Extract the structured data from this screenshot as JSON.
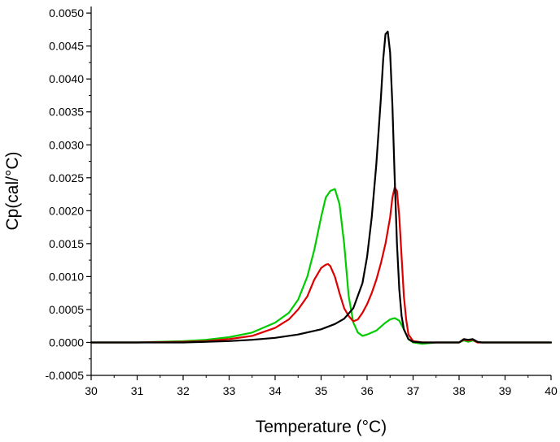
{
  "chart_data": {
    "type": "line",
    "title": "",
    "xlabel": "Temperature (°C)",
    "ylabel": "Cp(cal/°C)",
    "xlim": [
      30,
      40
    ],
    "ylim": [
      -0.0005,
      0.0051
    ],
    "x_ticks": [
      "30",
      "31",
      "32",
      "33",
      "34",
      "35",
      "36",
      "37",
      "38",
      "39",
      "40"
    ],
    "y_ticks": [
      "-0.0005",
      "0.0000",
      "0.0005",
      "0.0010",
      "0.0015",
      "0.0020",
      "0.0025",
      "0.0030",
      "0.0035",
      "0.0040",
      "0.0045",
      "0.0050"
    ],
    "grid": false,
    "legend": "none",
    "series": [
      {
        "color": "#00cc00",
        "x": [
          30.0,
          31.0,
          32.0,
          32.5,
          33.0,
          33.5,
          34.0,
          34.3,
          34.5,
          34.7,
          34.85,
          35.0,
          35.1,
          35.2,
          35.3,
          35.4,
          35.5,
          35.6,
          35.7,
          35.8,
          35.9,
          36.0,
          36.2,
          36.4,
          36.5,
          36.6,
          36.7,
          36.8,
          36.9,
          37.0,
          37.2,
          37.5,
          38.0,
          38.1,
          38.2,
          38.3,
          38.4,
          38.5,
          39.0,
          40.0
        ],
        "y": [
          0.0,
          0.0,
          2e-05,
          4e-05,
          8e-05,
          0.00015,
          0.0003,
          0.00045,
          0.00065,
          0.001,
          0.0014,
          0.0019,
          0.0022,
          0.0023,
          0.00233,
          0.0021,
          0.0015,
          0.0007,
          0.0003,
          0.00015,
          0.0001,
          0.00012,
          0.00018,
          0.0003,
          0.00035,
          0.00037,
          0.00033,
          0.0002,
          5e-05,
          0.0,
          -2e-05,
          0.0,
          0.0,
          3e-05,
          1e-05,
          3e-05,
          0.0,
          0.0,
          0.0,
          0.0
        ]
      },
      {
        "color": "#dd0000",
        "x": [
          30.0,
          31.0,
          32.0,
          32.5,
          33.0,
          33.5,
          34.0,
          34.3,
          34.5,
          34.7,
          34.85,
          35.0,
          35.1,
          35.15,
          35.2,
          35.3,
          35.4,
          35.5,
          35.6,
          35.7,
          35.8,
          35.9,
          36.0,
          36.1,
          36.2,
          36.3,
          36.4,
          36.5,
          36.55,
          36.6,
          36.65,
          36.7,
          36.75,
          36.8,
          36.85,
          36.9,
          37.0,
          37.2,
          37.5,
          38.0,
          38.1,
          38.2,
          38.3,
          38.4,
          38.5,
          39.0,
          40.0
        ],
        "y": [
          0.0,
          0.0,
          1e-05,
          2e-05,
          5e-05,
          0.0001,
          0.00022,
          0.00035,
          0.0005,
          0.0007,
          0.00095,
          0.00113,
          0.00118,
          0.00119,
          0.00116,
          0.001,
          0.00075,
          0.00052,
          0.0004,
          0.00032,
          0.00035,
          0.00045,
          0.00058,
          0.00075,
          0.00095,
          0.0012,
          0.0015,
          0.0019,
          0.0022,
          0.00235,
          0.0023,
          0.0019,
          0.0013,
          0.0007,
          0.00035,
          0.00012,
          2e-05,
          0.0,
          0.0,
          0.0,
          4e-05,
          3e-05,
          4e-05,
          0.0,
          0.0,
          0.0,
          0.0
        ]
      },
      {
        "color": "#000000",
        "x": [
          30.0,
          31.0,
          32.0,
          33.0,
          33.5,
          34.0,
          34.5,
          35.0,
          35.3,
          35.5,
          35.7,
          35.9,
          36.0,
          36.1,
          36.2,
          36.3,
          36.35,
          36.4,
          36.45,
          36.5,
          36.55,
          36.6,
          36.65,
          36.7,
          36.75,
          36.8,
          36.9,
          37.0,
          37.2,
          37.5,
          38.0,
          38.1,
          38.2,
          38.3,
          38.4,
          38.5,
          39.0,
          40.0
        ],
        "y": [
          0.0,
          0.0,
          0.0,
          2e-05,
          4e-05,
          7e-05,
          0.00012,
          0.0002,
          0.00028,
          0.00036,
          0.00052,
          0.0009,
          0.0013,
          0.0019,
          0.0027,
          0.0037,
          0.0043,
          0.00468,
          0.00472,
          0.0044,
          0.0036,
          0.0025,
          0.0015,
          0.0008,
          0.0004,
          0.0002,
          5e-05,
          1e-05,
          0.0,
          0.0,
          0.0,
          5e-05,
          4e-05,
          5e-05,
          1e-05,
          0.0,
          0.0,
          0.0
        ]
      }
    ]
  }
}
